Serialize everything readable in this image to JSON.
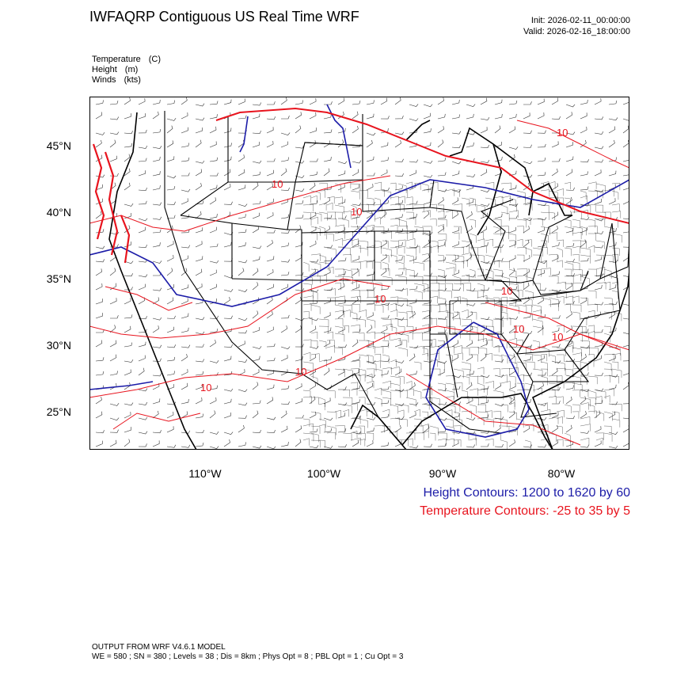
{
  "header": {
    "title": "IWFAQRP Contiguous US Real Time WRF",
    "init": "Init: 2026-02-11_00:00:00",
    "valid": "Valid: 2026-02-16_18:00:00"
  },
  "variables": [
    {
      "name": "Temperature",
      "unit": "(C)"
    },
    {
      "name": "Height",
      "unit": "(m)"
    },
    {
      "name": "Winds",
      "unit": "(kts)"
    }
  ],
  "latitude_labels": [
    "45°N",
    "40°N",
    "35°N",
    "30°N",
    "25°N"
  ],
  "longitude_labels": [
    "110°W",
    "100°W",
    "90°W",
    "80°W"
  ],
  "legend": {
    "height": "Height Contours: 1200 to 1620 by 60",
    "temperature": "Temperature Contours: -25 to 35 by 5"
  },
  "contour_labels": [
    "10",
    "10",
    "10",
    "10",
    "10",
    "10",
    "10",
    "10",
    "10"
  ],
  "colors": {
    "height": "#1c1ca8",
    "temperature": "#e8141e",
    "borders": "#000000"
  },
  "model": {
    "line1": "OUTPUT FROM WRF V4.6.1 MODEL",
    "line2": "WE = 580 ; SN = 380 ; Levels = 38 ; Dis = 8km ; Phys Opt = 8 ; PBL Opt = 1 ; Cu Opt = 3"
  }
}
